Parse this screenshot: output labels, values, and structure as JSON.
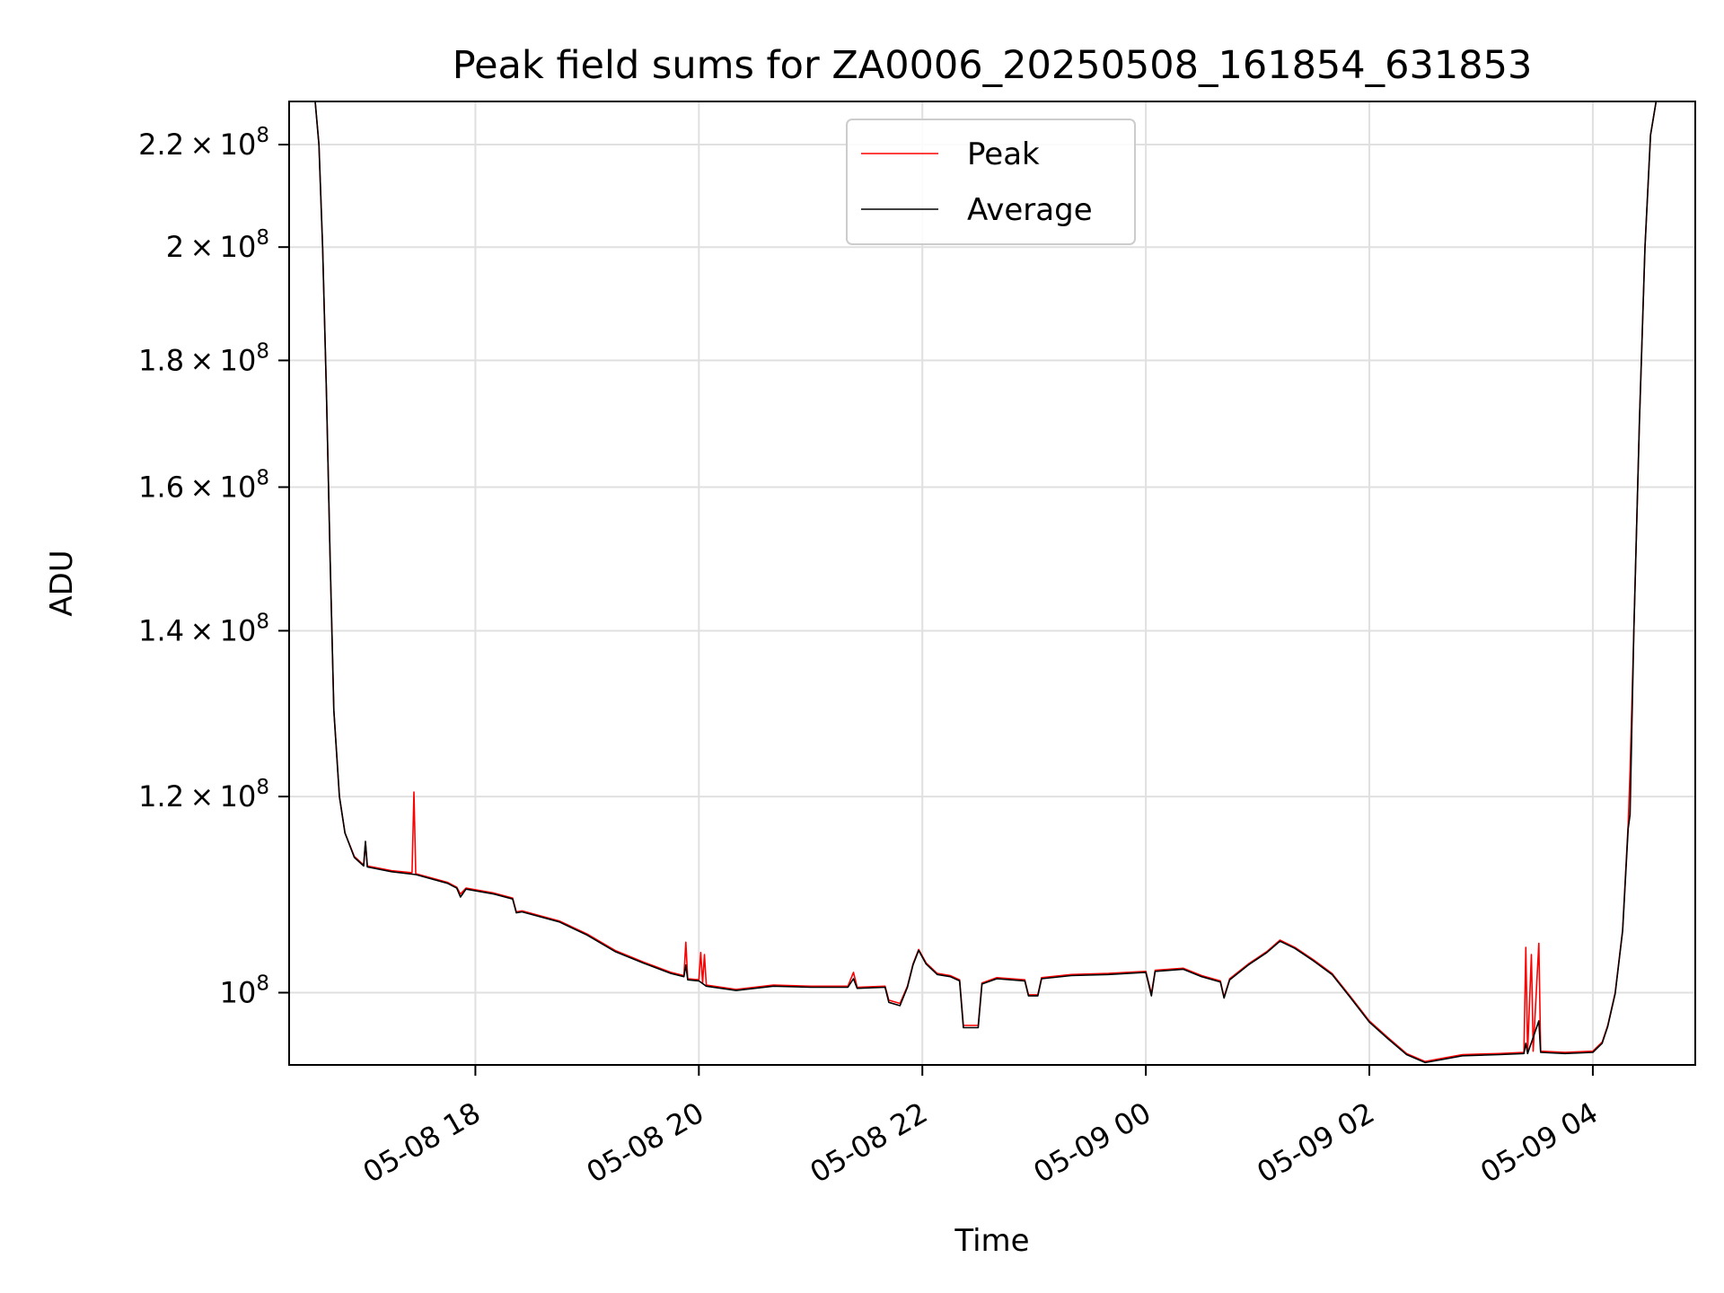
{
  "chart_data": {
    "type": "line",
    "title": "Peak field sums for ZA0006_20250508_161854_631853",
    "xlabel": "Time",
    "ylabel": "ADU",
    "yscale": "log",
    "grid": true,
    "legend_position": "top-center",
    "xlim": [
      "2025-05-08 16:20",
      "2025-05-09 04:55"
    ],
    "ylim": [
      93500000,
      229000000
    ],
    "x_ticks": [
      {
        "t": "2025-05-08 18:00",
        "label": "05-08 18"
      },
      {
        "t": "2025-05-08 20:00",
        "label": "05-08 20"
      },
      {
        "t": "2025-05-08 22:00",
        "label": "05-08 22"
      },
      {
        "t": "2025-05-09 00:00",
        "label": "05-09 00"
      },
      {
        "t": "2025-05-09 02:00",
        "label": "05-09 02"
      },
      {
        "t": "2025-05-09 04:00",
        "label": "05-09 04"
      }
    ],
    "y_ticks": [
      {
        "value": 100000000,
        "mant": "",
        "exp": "8"
      },
      {
        "value": 120000000,
        "mant": "1.2",
        "exp": "8"
      },
      {
        "value": 140000000,
        "mant": "1.4",
        "exp": "8"
      },
      {
        "value": 160000000,
        "mant": "1.6",
        "exp": "8"
      },
      {
        "value": 180000000,
        "mant": "1.8",
        "exp": "8"
      },
      {
        "value": 200000000,
        "mant": "2",
        "exp": "8"
      },
      {
        "value": 220000000,
        "mant": "2.2",
        "exp": "8"
      }
    ],
    "series": [
      {
        "name": "Peak",
        "color": "#ff0000",
        "points": [
          [
            "2025-05-08 16:34",
            229000000
          ],
          [
            "2025-05-08 16:36",
            220000000
          ],
          [
            "2025-05-08 16:38",
            200000000
          ],
          [
            "2025-05-08 16:40",
            175000000
          ],
          [
            "2025-05-08 16:42",
            150000000
          ],
          [
            "2025-05-08 16:44",
            130000000
          ],
          [
            "2025-05-08 16:47",
            120000000
          ],
          [
            "2025-05-08 16:50",
            116000000
          ],
          [
            "2025-05-08 16:55",
            113500000
          ],
          [
            "2025-05-08 17:00",
            112600000
          ],
          [
            "2025-05-08 17:01",
            115000000
          ],
          [
            "2025-05-08 17:02",
            112500000
          ],
          [
            "2025-05-08 17:15",
            112000000
          ],
          [
            "2025-05-08 17:26",
            111800000
          ],
          [
            "2025-05-08 17:27",
            120500000
          ],
          [
            "2025-05-08 17:28",
            111700000
          ],
          [
            "2025-05-08 17:45",
            110800000
          ],
          [
            "2025-05-08 17:50",
            110300000
          ],
          [
            "2025-05-08 17:52",
            109600000
          ],
          [
            "2025-05-08 17:55",
            110200000
          ],
          [
            "2025-05-08 18:10",
            109700000
          ],
          [
            "2025-05-08 18:20",
            109200000
          ],
          [
            "2025-05-08 18:22",
            107800000
          ],
          [
            "2025-05-08 18:25",
            107900000
          ],
          [
            "2025-05-08 18:45",
            106900000
          ],
          [
            "2025-05-08 19:00",
            105600000
          ],
          [
            "2025-05-08 19:15",
            104000000
          ],
          [
            "2025-05-08 19:30",
            102900000
          ],
          [
            "2025-05-08 19:45",
            101900000
          ],
          [
            "2025-05-08 19:52",
            101600000
          ],
          [
            "2025-05-08 19:53",
            104800000
          ],
          [
            "2025-05-08 19:54",
            101300000
          ],
          [
            "2025-05-08 20:00",
            101200000
          ],
          [
            "2025-05-08 20:01",
            103800000
          ],
          [
            "2025-05-08 20:02",
            100900000
          ],
          [
            "2025-05-08 20:03",
            103600000
          ],
          [
            "2025-05-08 20:04",
            100700000
          ],
          [
            "2025-05-08 20:20",
            100300000
          ],
          [
            "2025-05-08 20:40",
            100700000
          ],
          [
            "2025-05-08 21:00",
            100600000
          ],
          [
            "2025-05-08 21:20",
            100600000
          ],
          [
            "2025-05-08 21:23",
            101900000
          ],
          [
            "2025-05-08 21:25",
            100500000
          ],
          [
            "2025-05-08 21:40",
            100600000
          ],
          [
            "2025-05-08 21:42",
            99300000
          ],
          [
            "2025-05-08 21:48",
            99000000
          ],
          [
            "2025-05-08 21:52",
            100600000
          ],
          [
            "2025-05-08 21:55",
            102700000
          ],
          [
            "2025-05-08 21:58",
            104100000
          ],
          [
            "2025-05-08 22:02",
            102800000
          ],
          [
            "2025-05-08 22:08",
            101800000
          ],
          [
            "2025-05-08 22:15",
            101600000
          ],
          [
            "2025-05-08 22:20",
            101200000
          ],
          [
            "2025-05-08 22:22",
            97000000
          ],
          [
            "2025-05-08 22:30",
            97000000
          ],
          [
            "2025-05-08 22:32",
            100900000
          ],
          [
            "2025-05-08 22:40",
            101400000
          ],
          [
            "2025-05-08 22:55",
            101200000
          ],
          [
            "2025-05-08 22:57",
            99800000
          ],
          [
            "2025-05-08 23:02",
            99800000
          ],
          [
            "2025-05-08 23:04",
            101400000
          ],
          [
            "2025-05-08 23:20",
            101700000
          ],
          [
            "2025-05-08 23:40",
            101800000
          ],
          [
            "2025-05-09 00:00",
            102000000
          ],
          [
            "2025-05-09 00:03",
            99900000
          ],
          [
            "2025-05-09 00:05",
            102100000
          ],
          [
            "2025-05-09 00:20",
            102300000
          ],
          [
            "2025-05-09 00:30",
            101600000
          ],
          [
            "2025-05-09 00:40",
            101100000
          ],
          [
            "2025-05-09 00:42",
            99600000
          ],
          [
            "2025-05-09 00:45",
            101300000
          ],
          [
            "2025-05-09 00:55",
            102700000
          ],
          [
            "2025-05-09 01:05",
            103900000
          ],
          [
            "2025-05-09 01:12",
            105000000
          ],
          [
            "2025-05-09 01:20",
            104300000
          ],
          [
            "2025-05-09 01:30",
            103100000
          ],
          [
            "2025-05-09 01:40",
            101800000
          ],
          [
            "2025-05-09 01:50",
            99600000
          ],
          [
            "2025-05-09 02:00",
            97400000
          ],
          [
            "2025-05-09 02:10",
            95900000
          ],
          [
            "2025-05-09 02:20",
            94500000
          ],
          [
            "2025-05-09 02:30",
            93800000
          ],
          [
            "2025-05-09 02:40",
            94100000
          ],
          [
            "2025-05-09 02:50",
            94400000
          ],
          [
            "2025-05-09 03:10",
            94500000
          ],
          [
            "2025-05-09 03:23",
            94600000
          ],
          [
            "2025-05-09 03:24",
            104300000
          ],
          [
            "2025-05-09 03:25",
            94600000
          ],
          [
            "2025-05-09 03:27",
            103600000
          ],
          [
            "2025-05-09 03:28",
            94700000
          ],
          [
            "2025-05-09 03:31",
            104700000
          ],
          [
            "2025-05-09 03:32",
            94700000
          ],
          [
            "2025-05-09 03:45",
            94600000
          ],
          [
            "2025-05-09 04:00",
            94700000
          ],
          [
            "2025-05-09 04:05",
            95500000
          ],
          [
            "2025-05-09 04:08",
            97000000
          ],
          [
            "2025-05-09 04:12",
            100000000
          ],
          [
            "2025-05-09 04:16",
            106000000
          ],
          [
            "2025-05-09 04:19",
            117000000
          ],
          [
            "2025-05-09 04:20",
            123000000
          ],
          [
            "2025-05-09 04:22",
            140000000
          ],
          [
            "2025-05-09 04:25",
            170000000
          ],
          [
            "2025-05-09 04:28",
            200000000
          ],
          [
            "2025-05-09 04:31",
            222000000
          ],
          [
            "2025-05-09 04:34",
            229000000
          ]
        ]
      },
      {
        "name": "Average",
        "color": "#000000",
        "points": [
          [
            "2025-05-08 16:34",
            229000000
          ],
          [
            "2025-05-08 16:36",
            220000000
          ],
          [
            "2025-05-08 16:38",
            200000000
          ],
          [
            "2025-05-08 16:40",
            175000000
          ],
          [
            "2025-05-08 16:42",
            150000000
          ],
          [
            "2025-05-08 16:44",
            130000000
          ],
          [
            "2025-05-08 16:47",
            120000000
          ],
          [
            "2025-05-08 16:50",
            116000000
          ],
          [
            "2025-05-08 16:55",
            113400000
          ],
          [
            "2025-05-08 17:00",
            112500000
          ],
          [
            "2025-05-08 17:01",
            115100000
          ],
          [
            "2025-05-08 17:02",
            112400000
          ],
          [
            "2025-05-08 17:15",
            111900000
          ],
          [
            "2025-05-08 17:28",
            111600000
          ],
          [
            "2025-05-08 17:45",
            110700000
          ],
          [
            "2025-05-08 17:50",
            110200000
          ],
          [
            "2025-05-08 17:52",
            109300000
          ],
          [
            "2025-05-08 17:55",
            110100000
          ],
          [
            "2025-05-08 18:10",
            109600000
          ],
          [
            "2025-05-08 18:20",
            109100000
          ],
          [
            "2025-05-08 18:22",
            107700000
          ],
          [
            "2025-05-08 18:25",
            107800000
          ],
          [
            "2025-05-08 18:45",
            106800000
          ],
          [
            "2025-05-08 19:00",
            105500000
          ],
          [
            "2025-05-08 19:15",
            103900000
          ],
          [
            "2025-05-08 19:30",
            102800000
          ],
          [
            "2025-05-08 19:45",
            101800000
          ],
          [
            "2025-05-08 19:52",
            101500000
          ],
          [
            "2025-05-08 19:53",
            102600000
          ],
          [
            "2025-05-08 19:54",
            101200000
          ],
          [
            "2025-05-08 20:00",
            101100000
          ],
          [
            "2025-05-08 20:04",
            100600000
          ],
          [
            "2025-05-08 20:20",
            100200000
          ],
          [
            "2025-05-08 20:40",
            100600000
          ],
          [
            "2025-05-08 21:00",
            100500000
          ],
          [
            "2025-05-08 21:20",
            100500000
          ],
          [
            "2025-05-08 21:23",
            101300000
          ],
          [
            "2025-05-08 21:25",
            100400000
          ],
          [
            "2025-05-08 21:40",
            100500000
          ],
          [
            "2025-05-08 21:42",
            99100000
          ],
          [
            "2025-05-08 21:48",
            98800000
          ],
          [
            "2025-05-08 21:52",
            100500000
          ],
          [
            "2025-05-08 21:55",
            102600000
          ],
          [
            "2025-05-08 21:58",
            104000000
          ],
          [
            "2025-05-08 22:02",
            102700000
          ],
          [
            "2025-05-08 22:08",
            101700000
          ],
          [
            "2025-05-08 22:15",
            101500000
          ],
          [
            "2025-05-08 22:20",
            101100000
          ],
          [
            "2025-05-08 22:22",
            96800000
          ],
          [
            "2025-05-08 22:30",
            96800000
          ],
          [
            "2025-05-08 22:32",
            100800000
          ],
          [
            "2025-05-08 22:40",
            101300000
          ],
          [
            "2025-05-08 22:55",
            101100000
          ],
          [
            "2025-05-08 22:57",
            99700000
          ],
          [
            "2025-05-08 23:02",
            99700000
          ],
          [
            "2025-05-08 23:04",
            101300000
          ],
          [
            "2025-05-08 23:20",
            101600000
          ],
          [
            "2025-05-08 23:40",
            101700000
          ],
          [
            "2025-05-09 00:00",
            101900000
          ],
          [
            "2025-05-09 00:03",
            99700000
          ],
          [
            "2025-05-09 00:05",
            102000000
          ],
          [
            "2025-05-09 00:20",
            102200000
          ],
          [
            "2025-05-09 00:30",
            101500000
          ],
          [
            "2025-05-09 00:40",
            101000000
          ],
          [
            "2025-05-09 00:42",
            99500000
          ],
          [
            "2025-05-09 00:45",
            101200000
          ],
          [
            "2025-05-09 00:55",
            102600000
          ],
          [
            "2025-05-09 01:05",
            103800000
          ],
          [
            "2025-05-09 01:12",
            104900000
          ],
          [
            "2025-05-09 01:20",
            104200000
          ],
          [
            "2025-05-09 01:30",
            103000000
          ],
          [
            "2025-05-09 01:40",
            101700000
          ],
          [
            "2025-05-09 01:50",
            99500000
          ],
          [
            "2025-05-09 02:00",
            97300000
          ],
          [
            "2025-05-09 02:10",
            95800000
          ],
          [
            "2025-05-09 02:20",
            94400000
          ],
          [
            "2025-05-09 02:30",
            93700000
          ],
          [
            "2025-05-09 02:40",
            94000000
          ],
          [
            "2025-05-09 02:50",
            94300000
          ],
          [
            "2025-05-09 03:10",
            94400000
          ],
          [
            "2025-05-09 03:23",
            94500000
          ],
          [
            "2025-05-09 03:24",
            95400000
          ],
          [
            "2025-05-09 03:25",
            94500000
          ],
          [
            "2025-05-09 03:31",
            97400000
          ],
          [
            "2025-05-09 03:32",
            94600000
          ],
          [
            "2025-05-09 03:45",
            94500000
          ],
          [
            "2025-05-09 04:00",
            94600000
          ],
          [
            "2025-05-09 04:05",
            95400000
          ],
          [
            "2025-05-09 04:08",
            96900000
          ],
          [
            "2025-05-09 04:12",
            99900000
          ],
          [
            "2025-05-09 04:16",
            105900000
          ],
          [
            "2025-05-09 04:19",
            116500000
          ],
          [
            "2025-05-09 04:20",
            118000000
          ],
          [
            "2025-05-09 04:22",
            140000000
          ],
          [
            "2025-05-09 04:25",
            170000000
          ],
          [
            "2025-05-09 04:28",
            200000000
          ],
          [
            "2025-05-09 04:31",
            222000000
          ],
          [
            "2025-05-09 04:34",
            229000000
          ]
        ]
      }
    ]
  }
}
